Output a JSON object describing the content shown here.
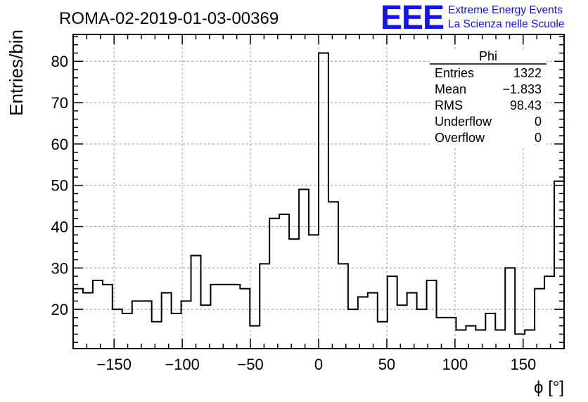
{
  "header": {
    "run_title": "ROMA-02-2019-01-03-00369",
    "logo_text": "EEE",
    "logo_line1": "Extreme Energy Events",
    "logo_line2": "La Scienza nelle Scuole",
    "brand_color": "#1515e0"
  },
  "stats_box": {
    "name": "Phi",
    "rows": [
      {
        "label": "Entries",
        "value": "1322"
      },
      {
        "label": "Mean",
        "value": "−1.833"
      },
      {
        "label": "RMS",
        "value": "98.43"
      },
      {
        "label": "Underflow",
        "value": "0"
      },
      {
        "label": "Overflow",
        "value": "0"
      }
    ]
  },
  "chart_data": {
    "type": "histogram",
    "title": "ROMA-02-2019-01-03-00369",
    "xlabel": "ϕ [°]",
    "ylabel": "Entries/bin",
    "xlim": [
      -180,
      180
    ],
    "ylim": [
      10.5,
      86.5
    ],
    "grid": true,
    "bin_width": 7.2,
    "values": [
      25,
      24,
      27,
      26,
      20,
      19,
      22,
      22,
      17,
      24,
      19,
      22,
      33,
      21,
      26,
      26,
      26,
      25,
      16,
      31,
      42,
      43,
      37,
      49,
      38,
      82,
      46,
      31,
      20,
      23,
      24,
      17,
      28,
      21,
      24,
      20,
      27,
      18,
      18,
      15,
      16,
      15,
      19,
      15,
      30,
      14,
      15,
      25,
      28,
      51
    ],
    "x_ticks": [
      -150,
      -100,
      -50,
      0,
      50,
      100,
      150
    ],
    "x_tick_labels": [
      "−150",
      "−100",
      "−50",
      "0",
      "50",
      "100",
      "150"
    ],
    "y_ticks": [
      20,
      30,
      40,
      50,
      60,
      70,
      80
    ],
    "y_tick_labels": [
      "20",
      "30",
      "40",
      "50",
      "60",
      "70",
      "80"
    ]
  }
}
